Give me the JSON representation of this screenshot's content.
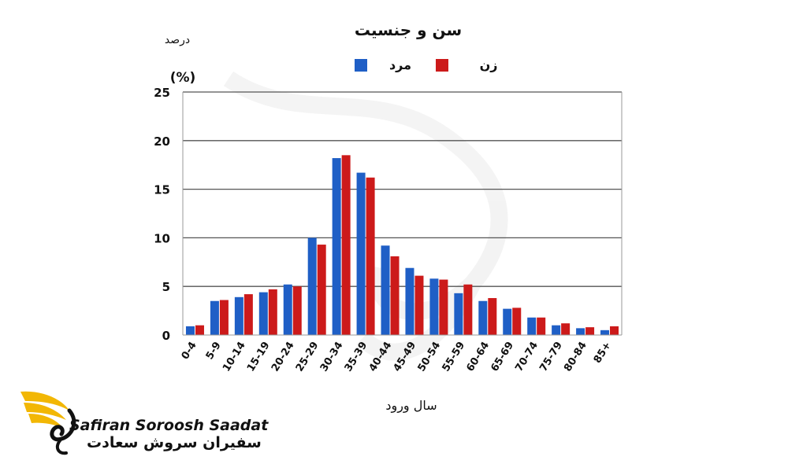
{
  "chart_data": {
    "type": "bar",
    "title": "سن و جنسیت",
    "ylabel": "درصد",
    "yunit": "(%)",
    "xlabel": "سال ورود",
    "ylim": [
      0,
      25
    ],
    "yticks": [
      0,
      5,
      10,
      15,
      20,
      25
    ],
    "grid": true,
    "legend_position": "top",
    "categories": [
      "0-4",
      "5-9",
      "10-14",
      "15-19",
      "20-24",
      "25-29",
      "30-34",
      "35-39",
      "40-44",
      "45-49",
      "50-54",
      "55-59",
      "60-64",
      "65-69",
      "70-74",
      "75-79",
      "80-84",
      "85+"
    ],
    "series": [
      {
        "name": "مرد",
        "color": "#1f5fc6",
        "values": [
          0.9,
          3.5,
          3.9,
          4.4,
          5.2,
          10.0,
          18.2,
          16.7,
          9.2,
          6.9,
          5.8,
          4.3,
          3.5,
          2.7,
          1.8,
          1.0,
          0.7,
          0.5
        ]
      },
      {
        "name": "زن",
        "color": "#cc1a1a",
        "values": [
          1.0,
          3.6,
          4.2,
          4.7,
          5.0,
          9.3,
          18.5,
          16.2,
          8.1,
          6.1,
          5.7,
          5.2,
          3.8,
          2.8,
          1.8,
          1.2,
          0.8,
          0.9
        ]
      }
    ]
  },
  "brand": {
    "name_en": "Safiran Soroosh Saadat",
    "name_fa": "سفیران سروش سعادت",
    "logo_icon": "golden-swan-wing-logo",
    "logo_color": "#f2b705"
  }
}
